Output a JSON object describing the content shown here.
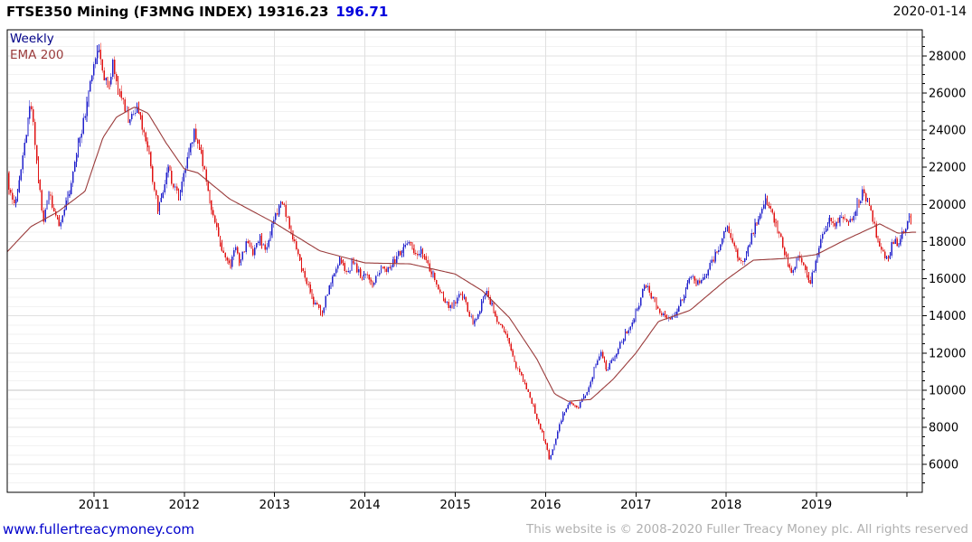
{
  "header": {
    "title": "FTSE350 Mining (F3MNG INDEX) 19316.23",
    "change": "196.71",
    "date": "2020-01-14"
  },
  "legend": {
    "interval": "Weekly",
    "overlay": "EMA 200"
  },
  "footer": {
    "link": "www.fullertreacymoney.com",
    "copyright": "This website is © 2008-2020 Fuller Treacy Money plc. All rights reserved"
  },
  "chart_data": {
    "type": "candlestick",
    "title": "FTSE350 Mining (F3MNG INDEX)",
    "interval": "Weekly",
    "overlay": "EMA 200",
    "last_close": 19316.23,
    "change": 196.71,
    "last_date": "2020-01-14",
    "x_range": [
      2010.04,
      2020.17
    ],
    "y_range": [
      4500,
      29400
    ],
    "y_ticks": [
      6000,
      8000,
      10000,
      12000,
      14000,
      16000,
      18000,
      20000,
      22000,
      24000,
      26000,
      28000
    ],
    "y_minor_step": 500,
    "y_emphasis": [
      10000,
      20000
    ],
    "x_ticks": [
      {
        "year": 2011,
        "label": "2011"
      },
      {
        "year": 2012,
        "label": "2012"
      },
      {
        "year": 2013,
        "label": "2013"
      },
      {
        "year": 2014,
        "label": "2014"
      },
      {
        "year": 2015,
        "label": "2015"
      },
      {
        "year": 2016,
        "label": "2016"
      },
      {
        "year": 2017,
        "label": "2017"
      },
      {
        "year": 2018,
        "label": "2018"
      },
      {
        "year": 2019,
        "label": "2019"
      },
      {
        "year": 2020,
        "label": ""
      }
    ],
    "up_color": "#2222cc",
    "down_color": "#e01414",
    "ema_color": "#9a3b3b",
    "legend_interval_color": "#000088",
    "grid_minor_color": "#f2f2f2",
    "grid_major_color": "#e0e0e0",
    "grid_emphasis_color": "#c4c4c4",
    "price_anchors": [
      [
        2010.02,
        22400
      ],
      [
        2010.06,
        21000
      ],
      [
        2010.12,
        19800
      ],
      [
        2010.17,
        21200
      ],
      [
        2010.24,
        23600
      ],
      [
        2010.29,
        25400
      ],
      [
        2010.33,
        24200
      ],
      [
        2010.38,
        21700
      ],
      [
        2010.44,
        19100
      ],
      [
        2010.5,
        20700
      ],
      [
        2010.56,
        19600
      ],
      [
        2010.62,
        18800
      ],
      [
        2010.68,
        19900
      ],
      [
        2010.74,
        20900
      ],
      [
        2010.8,
        22400
      ],
      [
        2010.87,
        24200
      ],
      [
        2010.93,
        25600
      ],
      [
        2011.0,
        27800
      ],
      [
        2011.04,
        28400
      ],
      [
        2011.1,
        26900
      ],
      [
        2011.16,
        26200
      ],
      [
        2011.21,
        27600
      ],
      [
        2011.27,
        26300
      ],
      [
        2011.33,
        25300
      ],
      [
        2011.4,
        24400
      ],
      [
        2011.47,
        25200
      ],
      [
        2011.53,
        24400
      ],
      [
        2011.6,
        23000
      ],
      [
        2011.65,
        21100
      ],
      [
        2011.71,
        19800
      ],
      [
        2011.77,
        20900
      ],
      [
        2011.82,
        22100
      ],
      [
        2011.88,
        20900
      ],
      [
        2011.94,
        20300
      ],
      [
        2012.0,
        21600
      ],
      [
        2012.06,
        23100
      ],
      [
        2012.11,
        23950
      ],
      [
        2012.17,
        23100
      ],
      [
        2012.24,
        21400
      ],
      [
        2012.31,
        19700
      ],
      [
        2012.38,
        18400
      ],
      [
        2012.45,
        17100
      ],
      [
        2012.5,
        16600
      ],
      [
        2012.56,
        17700
      ],
      [
        2012.62,
        16800
      ],
      [
        2012.69,
        18100
      ],
      [
        2012.76,
        17200
      ],
      [
        2012.83,
        18200
      ],
      [
        2012.9,
        17600
      ],
      [
        2012.96,
        18600
      ],
      [
        2013.02,
        19500
      ],
      [
        2013.08,
        20100
      ],
      [
        2013.14,
        19300
      ],
      [
        2013.21,
        18100
      ],
      [
        2013.28,
        16900
      ],
      [
        2013.35,
        15900
      ],
      [
        2013.43,
        14800
      ],
      [
        2013.52,
        14150
      ],
      [
        2013.59,
        15300
      ],
      [
        2013.66,
        16300
      ],
      [
        2013.73,
        17050
      ],
      [
        2013.8,
        16300
      ],
      [
        2013.87,
        16900
      ],
      [
        2013.94,
        16300
      ],
      [
        2014.02,
        16100
      ],
      [
        2014.1,
        15750
      ],
      [
        2014.17,
        16600
      ],
      [
        2014.25,
        16400
      ],
      [
        2014.33,
        17000
      ],
      [
        2014.42,
        17600
      ],
      [
        2014.5,
        17850
      ],
      [
        2014.57,
        17150
      ],
      [
        2014.63,
        17500
      ],
      [
        2014.7,
        16700
      ],
      [
        2014.78,
        15900
      ],
      [
        2014.86,
        15100
      ],
      [
        2014.93,
        14350
      ],
      [
        2015.0,
        14800
      ],
      [
        2015.07,
        15300
      ],
      [
        2015.13,
        14500
      ],
      [
        2015.2,
        13500
      ],
      [
        2015.27,
        14400
      ],
      [
        2015.34,
        15300
      ],
      [
        2015.4,
        14600
      ],
      [
        2015.47,
        13700
      ],
      [
        2015.54,
        13200
      ],
      [
        2015.61,
        12300
      ],
      [
        2015.68,
        11200
      ],
      [
        2015.74,
        10600
      ],
      [
        2015.81,
        9900
      ],
      [
        2015.88,
        8900
      ],
      [
        2015.94,
        8000
      ],
      [
        2016.0,
        7100
      ],
      [
        2016.04,
        6300
      ],
      [
        2016.08,
        6800
      ],
      [
        2016.13,
        7700
      ],
      [
        2016.19,
        8700
      ],
      [
        2016.27,
        9400
      ],
      [
        2016.35,
        9000
      ],
      [
        2016.42,
        9600
      ],
      [
        2016.49,
        10200
      ],
      [
        2016.55,
        11400
      ],
      [
        2016.62,
        12050
      ],
      [
        2016.68,
        11100
      ],
      [
        2016.75,
        11700
      ],
      [
        2016.82,
        12400
      ],
      [
        2016.89,
        13100
      ],
      [
        2016.96,
        13700
      ],
      [
        2017.04,
        14700
      ],
      [
        2017.1,
        15800
      ],
      [
        2017.16,
        15100
      ],
      [
        2017.23,
        14500
      ],
      [
        2017.31,
        14000
      ],
      [
        2017.39,
        13750
      ],
      [
        2017.47,
        14500
      ],
      [
        2017.54,
        15300
      ],
      [
        2017.61,
        16300
      ],
      [
        2017.68,
        15700
      ],
      [
        2017.75,
        16050
      ],
      [
        2017.82,
        16700
      ],
      [
        2017.9,
        17500
      ],
      [
        2017.97,
        18500
      ],
      [
        2018.03,
        18700
      ],
      [
        2018.1,
        17700
      ],
      [
        2018.16,
        16800
      ],
      [
        2018.23,
        17600
      ],
      [
        2018.31,
        18700
      ],
      [
        2018.39,
        19700
      ],
      [
        2018.45,
        20250
      ],
      [
        2018.52,
        19400
      ],
      [
        2018.59,
        18300
      ],
      [
        2018.66,
        17200
      ],
      [
        2018.73,
        16300
      ],
      [
        2018.79,
        17300
      ],
      [
        2018.86,
        16500
      ],
      [
        2018.93,
        15800
      ],
      [
        2019.0,
        17100
      ],
      [
        2019.07,
        18400
      ],
      [
        2019.14,
        19250
      ],
      [
        2019.21,
        18800
      ],
      [
        2019.29,
        19500
      ],
      [
        2019.36,
        18950
      ],
      [
        2019.44,
        19900
      ],
      [
        2019.52,
        20750
      ],
      [
        2019.58,
        19900
      ],
      [
        2019.65,
        18600
      ],
      [
        2019.72,
        17500
      ],
      [
        2019.79,
        17000
      ],
      [
        2019.85,
        18100
      ],
      [
        2019.91,
        17800
      ],
      [
        2019.97,
        18700
      ],
      [
        2020.02,
        19100
      ],
      [
        2020.05,
        19316
      ]
    ],
    "ema_anchors": [
      [
        2010.02,
        17350
      ],
      [
        2010.3,
        18800
      ],
      [
        2010.6,
        19600
      ],
      [
        2010.9,
        20700
      ],
      [
        2011.1,
        23600
      ],
      [
        2011.25,
        24700
      ],
      [
        2011.45,
        25250
      ],
      [
        2011.6,
        24900
      ],
      [
        2011.8,
        23300
      ],
      [
        2012.0,
        21900
      ],
      [
        2012.15,
        21700
      ],
      [
        2012.5,
        20300
      ],
      [
        2013.0,
        19000
      ],
      [
        2013.5,
        17500
      ],
      [
        2014.0,
        16850
      ],
      [
        2014.5,
        16800
      ],
      [
        2015.0,
        16250
      ],
      [
        2015.3,
        15350
      ],
      [
        2015.6,
        13900
      ],
      [
        2015.9,
        11700
      ],
      [
        2016.1,
        9800
      ],
      [
        2016.25,
        9400
      ],
      [
        2016.5,
        9500
      ],
      [
        2016.75,
        10600
      ],
      [
        2017.0,
        12000
      ],
      [
        2017.25,
        13700
      ],
      [
        2017.6,
        14300
      ],
      [
        2018.0,
        15950
      ],
      [
        2018.3,
        17000
      ],
      [
        2018.7,
        17100
      ],
      [
        2019.0,
        17300
      ],
      [
        2019.3,
        18050
      ],
      [
        2019.7,
        18950
      ],
      [
        2019.9,
        18450
      ],
      [
        2020.06,
        18500
      ]
    ]
  }
}
